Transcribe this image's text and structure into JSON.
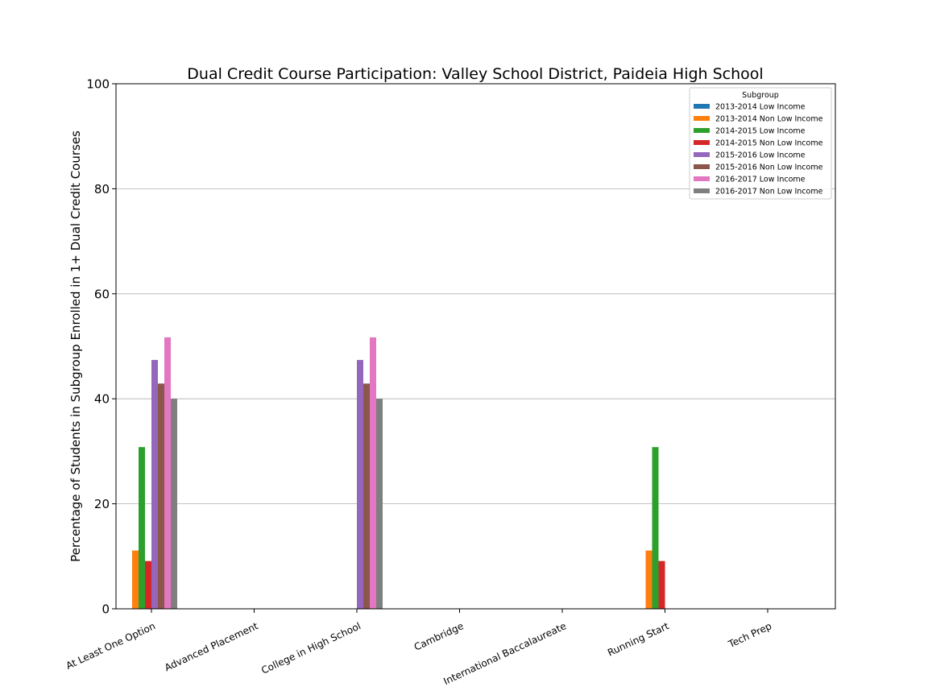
{
  "chart_data": {
    "type": "bar",
    "title": "Dual Credit Course Participation: Valley School District, Paideia High School",
    "xlabel": "",
    "ylabel": "Percentage of Students in Subgroup Enrolled in 1+ Dual Credit Courses",
    "ylim": [
      0,
      100
    ],
    "yticks": [
      0,
      20,
      40,
      60,
      80,
      100
    ],
    "grid": "horizontal",
    "legend_title": "Subgroup",
    "legend_position": "top-right",
    "categories": [
      "At Least One Option",
      "Advanced Placement",
      "College in High School",
      "Cambridge",
      "International Baccalaureate",
      "Running Start",
      "Tech Prep"
    ],
    "series": [
      {
        "name": "2013-2014 Low Income",
        "color": "#1f77b4",
        "values": [
          0,
          0,
          0,
          0,
          0,
          0,
          0
        ]
      },
      {
        "name": "2013-2014 Non Low Income",
        "color": "#ff7f0e",
        "values": [
          11.1,
          0,
          0,
          0,
          0,
          11.1,
          0
        ]
      },
      {
        "name": "2014-2015 Low Income",
        "color": "#2ca02c",
        "values": [
          30.8,
          0,
          0,
          0,
          0,
          30.8,
          0
        ]
      },
      {
        "name": "2014-2015 Non Low Income",
        "color": "#d62728",
        "values": [
          9.1,
          0,
          0,
          0,
          0,
          9.1,
          0
        ]
      },
      {
        "name": "2015-2016 Low Income",
        "color": "#9467bd",
        "values": [
          47.4,
          0,
          47.4,
          0,
          0,
          0,
          0
        ]
      },
      {
        "name": "2015-2016 Non Low Income",
        "color": "#8c564b",
        "values": [
          42.9,
          0,
          42.9,
          0,
          0,
          0,
          0
        ]
      },
      {
        "name": "2016-2017 Low Income",
        "color": "#e377c2",
        "values": [
          51.7,
          0,
          51.7,
          0,
          0,
          0,
          0
        ]
      },
      {
        "name": "2016-2017 Non Low Income",
        "color": "#7f7f7f",
        "values": [
          40.0,
          0,
          40.0,
          0,
          0,
          0,
          0
        ]
      }
    ]
  }
}
